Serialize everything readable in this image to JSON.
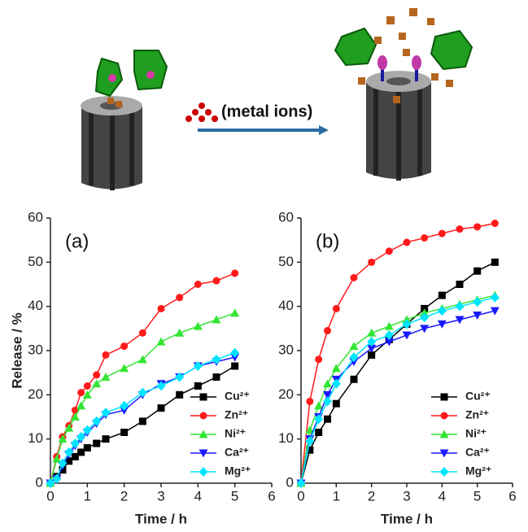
{
  "illustration": {
    "label": "(metal ions)"
  },
  "chart_data": [
    {
      "type": "line",
      "annotation": "(a)",
      "xlabel": "Time / h",
      "ylabel": "Release / %",
      "x": [
        0,
        0.17,
        0.33,
        0.5,
        0.67,
        0.83,
        1,
        1.25,
        1.5,
        2,
        2.5,
        3,
        3.5,
        4,
        4.5,
        5
      ],
      "xlim": [
        0,
        6
      ],
      "xticks": [
        0,
        1,
        2,
        3,
        4,
        5,
        6
      ],
      "ylim": [
        0,
        60
      ],
      "yticks": [
        0,
        10,
        20,
        30,
        40,
        50,
        60
      ],
      "legend": "lower right",
      "series": [
        {
          "name": "Cu²⁺",
          "color": "#000000",
          "marker": "square",
          "values": [
            0,
            1.5,
            3,
            5,
            6,
            7,
            8,
            9,
            10,
            11.5,
            14,
            17,
            20,
            22,
            24,
            26.5
          ]
        },
        {
          "name": "Zn²⁺",
          "color": "#ff1a1a",
          "marker": "circle",
          "values": [
            0,
            6,
            10.5,
            13,
            16.5,
            20.5,
            22,
            24.5,
            29,
            31,
            34,
            39.5,
            42,
            45,
            45.8,
            47.5
          ]
        },
        {
          "name": "Ni²⁺",
          "color": "#33e633",
          "marker": "triangle-up",
          "values": [
            0,
            5.5,
            10,
            12.5,
            15,
            17.5,
            20,
            22.5,
            24,
            26,
            28,
            32,
            34,
            35.5,
            37,
            38.5
          ]
        },
        {
          "name": "Ca²⁺",
          "color": "#1a1aff",
          "marker": "triangle-down",
          "values": [
            0,
            1,
            4,
            6.5,
            8.5,
            10,
            11.5,
            13.5,
            15.5,
            16.5,
            20,
            22.5,
            24,
            26.5,
            27.5,
            28.5
          ]
        },
        {
          "name": "Mg²⁺",
          "color": "#00e5ff",
          "marker": "diamond",
          "values": [
            0,
            1,
            4.5,
            7,
            9,
            10.5,
            12,
            14,
            16,
            17.5,
            20.5,
            22,
            24,
            26.5,
            28,
            29.5
          ]
        }
      ]
    },
    {
      "type": "line",
      "annotation": "(b)",
      "xlabel": "Time / h",
      "x": [
        0,
        0.25,
        0.5,
        0.75,
        1,
        1.5,
        2,
        2.5,
        3,
        3.5,
        4,
        4.5,
        5,
        5.5
      ],
      "xlim": [
        0,
        6
      ],
      "xticks": [
        0,
        1,
        2,
        3,
        4,
        5,
        6
      ],
      "ylim": [
        0,
        60
      ],
      "yticks": [
        0,
        10,
        20,
        30,
        40,
        50,
        60
      ],
      "legend": "lower right",
      "series": [
        {
          "name": "Cu²⁺",
          "color": "#000000",
          "marker": "square",
          "values": [
            0,
            7.5,
            11.5,
            14.5,
            18,
            23.5,
            29,
            32.5,
            36,
            39.5,
            42.5,
            45,
            48,
            50
          ]
        },
        {
          "name": "Zn²⁺",
          "color": "#ff1a1a",
          "marker": "circle",
          "values": [
            0,
            18.5,
            28,
            34.5,
            39.5,
            46.5,
            50,
            52.5,
            54.5,
            55.5,
            56.5,
            57.5,
            58,
            58.8
          ]
        },
        {
          "name": "Ni²⁺",
          "color": "#33e633",
          "marker": "triangle-up",
          "values": [
            0,
            12,
            17.5,
            22.5,
            26,
            31,
            34,
            35.5,
            37,
            38.5,
            39.5,
            40.5,
            41.5,
            42.5
          ]
        },
        {
          "name": "Ca²⁺",
          "color": "#1a1aff",
          "marker": "triangle-down",
          "values": [
            0,
            10,
            15,
            20,
            23.5,
            27.5,
            30.5,
            32,
            33.5,
            35,
            36,
            37,
            38,
            39
          ]
        },
        {
          "name": "Mg²⁺",
          "color": "#00e5ff",
          "marker": "diamond",
          "values": [
            0,
            9.5,
            14.5,
            18.5,
            22.5,
            28.5,
            32,
            33.5,
            36,
            37.5,
            39,
            40,
            41,
            42
          ]
        }
      ]
    }
  ]
}
